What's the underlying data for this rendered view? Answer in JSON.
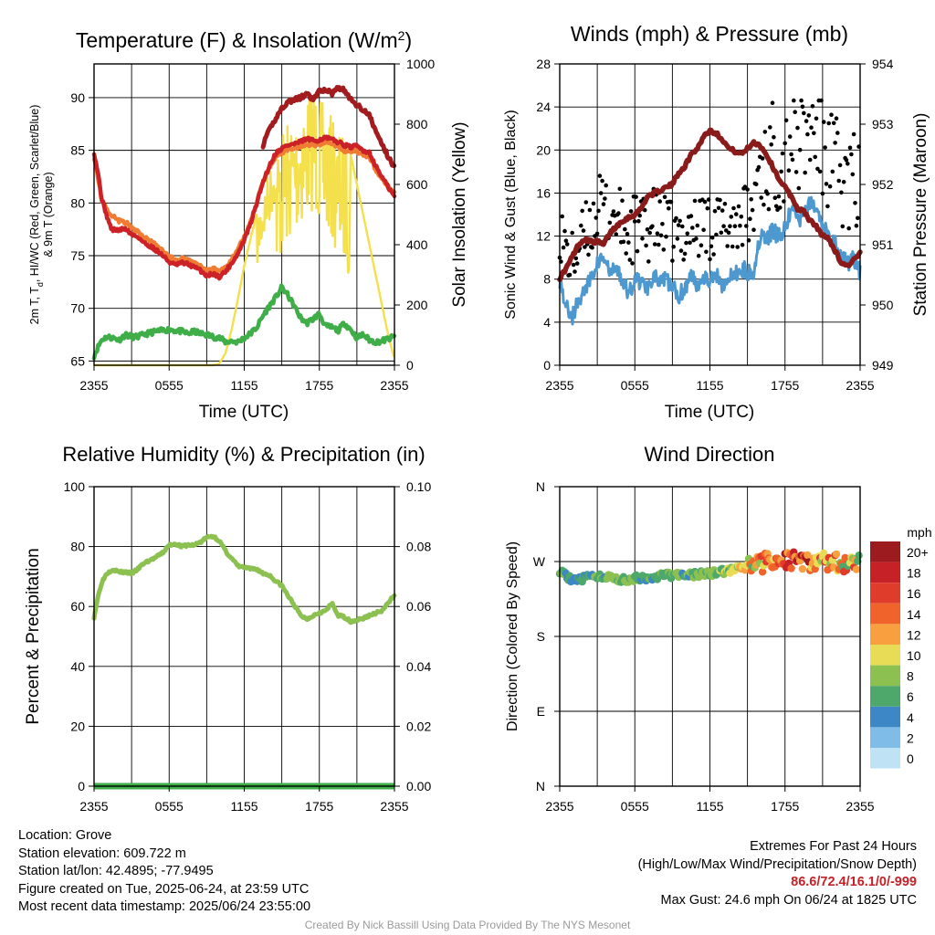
{
  "chart_data": [
    {
      "type": "line",
      "title_main": "Temperature (F) & Insolation (W/m",
      "title_sup": "2",
      "title_close": ")",
      "xlabel": "Time (UTC)",
      "ylabel_left_line1": "2m T, T",
      "ylabel_left_sub": "d",
      "ylabel_left_line1_tail": ", HI/WC (Red, Green, Scarlet/Blue)",
      "ylabel_left_line2": "& 9m T (Orange)",
      "ylabel_right": "Solar Insolation (Yellow)",
      "x_ticks": [
        "2355",
        "0555",
        "1155",
        "1755",
        "2355"
      ],
      "x_hours": [
        0,
        6,
        12,
        18,
        24
      ],
      "ylim": [
        64.6,
        93.2
      ],
      "y_ticks": [
        65,
        70,
        75,
        80,
        85,
        90
      ],
      "y2lim": [
        0,
        1000
      ],
      "y2_ticks": [
        0,
        200,
        400,
        600,
        800,
        1000
      ],
      "grid": true,
      "series": [
        {
          "color": "#cc2127",
          "axis": "left",
          "x": [
            0,
            0.3,
            0.6,
            1,
            1.4,
            2,
            2.5,
            3,
            3.5,
            4,
            4.5,
            5,
            5.5,
            6,
            6.5,
            7,
            7.5,
            8,
            8.5,
            9,
            9.5,
            10,
            10.5,
            11,
            11.5,
            12,
            12.5,
            13,
            13.5,
            14,
            14.5,
            15,
            15.5,
            16,
            16.5,
            17,
            17.5,
            18,
            18.5,
            19,
            19.5,
            20,
            20.5,
            21,
            21.5,
            22,
            22.5,
            23,
            23.5,
            24
          ],
          "y": [
            84.8,
            83,
            80.5,
            78.8,
            77.5,
            77.4,
            77.6,
            77,
            76.8,
            76.2,
            75.9,
            75.5,
            75,
            74.4,
            74.1,
            74.3,
            74.2,
            73.9,
            73.6,
            73.1,
            73.3,
            73,
            73.5,
            74.3,
            75.2,
            76.5,
            78,
            80,
            82,
            83.5,
            84.7,
            85.2,
            85.5,
            85.6,
            85.8,
            86.1,
            85.9,
            86,
            86.2,
            86,
            85.8,
            85.5,
            85.3,
            85.4,
            85,
            84.8,
            83.5,
            82.5,
            81.5,
            80.6
          ]
        },
        {
          "color": "#f07c33",
          "axis": "left",
          "x": [
            0,
            0.3,
            0.6,
            1,
            1.4,
            2,
            2.5,
            3,
            3.5,
            4,
            4.5,
            5,
            5.5,
            6,
            6.5,
            7,
            7.5,
            8,
            8.5,
            9,
            9.5,
            10,
            10.5,
            11,
            11.5,
            12,
            12.5,
            13,
            13.5,
            14,
            14.5,
            15,
            15.5,
            16,
            16.5,
            17,
            17.5,
            18,
            18.5,
            19,
            19.5,
            20,
            20.5,
            21,
            21.5,
            22,
            22.5,
            23,
            23.5,
            24
          ],
          "y": [
            84.3,
            82.5,
            80.3,
            79.4,
            78.9,
            78.3,
            78.2,
            77.6,
            77.3,
            76.7,
            76.4,
            75.9,
            75.4,
            74.9,
            74.6,
            74.7,
            74.6,
            74.3,
            74,
            73.6,
            73.8,
            73.5,
            73.9,
            74.7,
            75.6,
            76.8,
            78.2,
            80.1,
            81.9,
            83.3,
            84.3,
            84.8,
            85.1,
            85.2,
            85.4,
            85.6,
            85.5,
            85.6,
            85.8,
            85.6,
            85.3,
            85,
            84.9,
            84.9,
            84.6,
            84.3,
            83.2,
            82.3,
            81.5,
            81
          ]
        },
        {
          "color": "#a11b1f",
          "axis": "left",
          "x": [
            13.5,
            14,
            14.5,
            15,
            15.5,
            16,
            16.5,
            17,
            17.5,
            18,
            18.5,
            19,
            19.5,
            20,
            20.5,
            21,
            21.5,
            22,
            22.5,
            23,
            23.5,
            24
          ],
          "y": [
            85.5,
            86.9,
            88,
            89,
            89.6,
            89.8,
            90,
            90.3,
            89.8,
            90.6,
            90.8,
            90.4,
            91,
            90.7,
            89.8,
            89.3,
            88.9,
            88.3,
            86.8,
            85.6,
            84.4,
            83.4
          ]
        },
        {
          "color": "#3fae49",
          "axis": "left",
          "x": [
            0,
            0.3,
            0.6,
            1,
            1.5,
            2,
            2.5,
            3,
            3.5,
            4,
            4.5,
            5,
            5.5,
            6,
            6.5,
            7,
            7.5,
            8,
            8.5,
            9,
            9.5,
            10,
            10.5,
            11,
            11.5,
            12,
            12.5,
            13,
            13.5,
            14,
            14.5,
            15,
            15.5,
            16,
            16.5,
            17,
            17.5,
            18,
            18.5,
            19,
            19.5,
            20,
            20.5,
            21,
            21.5,
            22,
            22.5,
            23,
            23.5,
            24
          ],
          "y": [
            65.5,
            66.3,
            67,
            67.3,
            67.2,
            67,
            67.5,
            67.3,
            67.3,
            67.5,
            67.7,
            67.8,
            67.9,
            68,
            67.9,
            67.8,
            67.6,
            67.8,
            67.6,
            67.5,
            67.3,
            67.2,
            66.8,
            66.9,
            66.8,
            67.2,
            67.6,
            68.2,
            69.3,
            70.2,
            71,
            72,
            71.2,
            70.2,
            69.1,
            68.6,
            69,
            69.5,
            68.3,
            68.2,
            67.9,
            68.6,
            68,
            67.2,
            67.5,
            67,
            66.8,
            66.9,
            67.1,
            67.3
          ]
        },
        {
          "color": "#f4e04d",
          "axis": "right",
          "x": [
            0,
            2,
            4,
            6,
            8,
            9.5,
            10,
            10.5,
            11,
            11.5,
            12,
            12.5,
            13,
            13.5,
            14,
            14.5,
            15,
            15.5,
            16,
            16.5,
            17,
            17.5,
            18,
            18.5,
            19,
            19.5,
            20,
            20.5,
            21,
            21.5,
            22,
            22.5,
            23,
            23.5,
            24
          ],
          "y": [
            0,
            0,
            0,
            0,
            0,
            0,
            5,
            40,
            120,
            220,
            330,
            420,
            500,
            580,
            650,
            720,
            780,
            820,
            840,
            880,
            900,
            940,
            880,
            860,
            820,
            780,
            760,
            700,
            600,
            500,
            400,
            300,
            200,
            100,
            20
          ]
        }
      ]
    },
    {
      "type": "line",
      "title": "Winds (mph) & Pressure (mb)",
      "xlabel": "Time (UTC)",
      "ylabel_left": "Sonic Wind & Gust (Blue, Black)",
      "ylabel_right": "Station Pressure (Maroon)",
      "x_ticks": [
        "2355",
        "0555",
        "1155",
        "1755",
        "2355"
      ],
      "x_hours": [
        0,
        6,
        12,
        18,
        24
      ],
      "ylim": [
        0,
        28
      ],
      "y_ticks": [
        0,
        4,
        8,
        12,
        16,
        20,
        24,
        28
      ],
      "y2lim": [
        949,
        954
      ],
      "y2_ticks": [
        949,
        950,
        951,
        952,
        953,
        954
      ],
      "grid": true,
      "series": [
        {
          "color": "#4e98d0",
          "axis": "left",
          "x": [
            0,
            0.5,
            1,
            1.5,
            2,
            2.5,
            3,
            3.5,
            4,
            4.5,
            5,
            5.5,
            6,
            6.5,
            7,
            7.5,
            8,
            8.5,
            9,
            9.5,
            10,
            10.5,
            11,
            11.5,
            12,
            12.5,
            13,
            13.5,
            14,
            14.5,
            15,
            15.5,
            16,
            16.5,
            17,
            17.5,
            18,
            18.5,
            19,
            19.5,
            20,
            20.5,
            21,
            21.5,
            22,
            22.5,
            23,
            23.5,
            24
          ],
          "y": [
            8,
            5.5,
            4.5,
            6,
            7,
            8,
            9.5,
            10,
            8.5,
            9,
            8,
            6.5,
            8,
            7.8,
            7.2,
            8.5,
            7.5,
            8,
            7.2,
            6.5,
            7.2,
            8.3,
            7.5,
            8.4,
            7.8,
            8.5,
            7.5,
            8,
            8.4,
            9,
            8.7,
            8.8,
            12,
            11.5,
            12.5,
            12,
            12.6,
            14.5,
            13.5,
            13.8,
            15,
            14.5,
            13,
            12,
            11.5,
            10,
            9.5,
            10,
            8.5
          ]
        },
        {
          "color": "#8a1b1b",
          "axis": "right",
          "x": [
            0,
            0.5,
            1,
            1.5,
            2,
            2.5,
            3,
            3.5,
            4,
            4.5,
            5,
            5.5,
            6,
            6.5,
            7,
            7.5,
            8,
            8.5,
            9,
            9.5,
            10,
            10.5,
            11,
            11.5,
            12,
            12.5,
            13,
            13.5,
            14,
            14.5,
            15,
            15.5,
            16,
            16.5,
            17,
            17.5,
            18,
            18.5,
            19,
            19.5,
            20,
            20.5,
            21,
            21.5,
            22,
            22.5,
            23,
            23.5,
            24
          ],
          "y": [
            950.45,
            950.6,
            950.8,
            951,
            951.1,
            951.05,
            951.05,
            951,
            951.2,
            951.3,
            951.4,
            951.45,
            951.5,
            951.6,
            951.8,
            951.85,
            951.9,
            951.95,
            952,
            952.2,
            952.3,
            952.5,
            952.6,
            952.8,
            952.9,
            952.85,
            952.75,
            952.6,
            952.55,
            952.5,
            952.6,
            952.7,
            952.65,
            952.5,
            952.3,
            952.1,
            951.95,
            951.8,
            951.6,
            951.55,
            951.4,
            951.3,
            951.15,
            951.1,
            950.9,
            950.7,
            950.65,
            950.75,
            950.85
          ]
        }
      ]
    },
    {
      "type": "line",
      "title": "Relative Humidity (%) & Precipitation (in)",
      "ylabel_left": "Percent & Precipitation",
      "x_ticks": [
        "2355",
        "0555",
        "1155",
        "1755",
        "2355"
      ],
      "x_hours": [
        0,
        6,
        12,
        18,
        24
      ],
      "ylim": [
        0,
        100
      ],
      "y_ticks": [
        0,
        20,
        40,
        60,
        80,
        100
      ],
      "y2lim": [
        0,
        0.1
      ],
      "y2_ticks": [
        "0.00",
        "0.02",
        "0.04",
        "0.06",
        "0.08",
        "0.10"
      ],
      "grid": true,
      "series": [
        {
          "color": "#8cc152",
          "axis": "left",
          "x": [
            0,
            0.3,
            0.6,
            1,
            1.5,
            2,
            2.5,
            3,
            3.5,
            4,
            4.5,
            5,
            5.5,
            6,
            6.5,
            7,
            7.5,
            8,
            8.5,
            9,
            9.5,
            10,
            10.5,
            11,
            11.5,
            12,
            12.5,
            13,
            13.5,
            14,
            14.5,
            15,
            15.5,
            16,
            16.5,
            17,
            17.5,
            18,
            18.5,
            19,
            19.5,
            20,
            20.5,
            21,
            21.5,
            22,
            22.5,
            23,
            23.5,
            24
          ],
          "y": [
            56.5,
            63,
            68,
            71,
            72.5,
            71.5,
            71.5,
            71,
            72.5,
            74.5,
            75.5,
            76.5,
            78,
            80.5,
            81,
            80,
            80.5,
            80.5,
            81.5,
            83,
            83.5,
            82,
            78.5,
            76,
            73.5,
            73,
            72.5,
            72.5,
            71,
            70.5,
            68.5,
            67,
            63.5,
            60.5,
            57,
            55.8,
            57,
            58,
            58.5,
            61,
            57,
            56.5,
            55,
            55.5,
            56,
            57,
            57.8,
            58.5,
            61,
            64
          ]
        },
        {
          "color": "#3fae49",
          "axis": "left",
          "x": [
            0,
            24
          ],
          "y": [
            0,
            0
          ]
        }
      ]
    },
    {
      "type": "scatter",
      "title": "Wind Direction",
      "ylabel_left": "Direction (Colored By Speed)",
      "x_ticks": [
        "2355",
        "0555",
        "1155",
        "1755",
        "2355"
      ],
      "x_hours": [
        0,
        6,
        12,
        18,
        24
      ],
      "y_ticks": [
        "N",
        "E",
        "S",
        "W",
        "N"
      ],
      "ylim": [
        0,
        360
      ],
      "grid": true,
      "colorbar_unit": "mph",
      "colorbar_labels": [
        "20+",
        "18",
        "16",
        "14",
        "12",
        "10",
        "8",
        "6",
        "4",
        "2",
        "0"
      ],
      "colorbar_colors": [
        "#9c1b1e",
        "#c62127",
        "#e03c2c",
        "#f0642b",
        "#f8a03f",
        "#e8dc56",
        "#8cc152",
        "#4ea86b",
        "#3d87c5",
        "#80bde6",
        "#bfe3f5"
      ],
      "speed_x": [
        0,
        1,
        2,
        3,
        4,
        5,
        6,
        7,
        8,
        9,
        10,
        11,
        12,
        13,
        14,
        15,
        16,
        17,
        18,
        19,
        20,
        21,
        22,
        23,
        24
      ],
      "speed_y": [
        7,
        5,
        5,
        6,
        7,
        7,
        7,
        6,
        6,
        7,
        6,
        7,
        7,
        8,
        9,
        10,
        12,
        13,
        15,
        16,
        15,
        13,
        12,
        11,
        10
      ],
      "dir_x": [
        0,
        1,
        2,
        3,
        4,
        5,
        6,
        7,
        8,
        9,
        10,
        11,
        12,
        13,
        14,
        15,
        16,
        17,
        18,
        19,
        20,
        21,
        22,
        23,
        24
      ],
      "dir_y": [
        258,
        247,
        250,
        253,
        252,
        248,
        250,
        251,
        252,
        254,
        253,
        255,
        256,
        258,
        260,
        264,
        268,
        270,
        272,
        271,
        268,
        270,
        269,
        266,
        270
      ]
    }
  ],
  "info_left": [
    "Location: Grove",
    "Station elevation: 609.722 m",
    "Station lat/lon: 42.4895; -77.9495",
    "Figure created on Tue, 2025-06-24, at 23:59 UTC",
    "Most recent data timestamp: 2025/06/24 23:55:00"
  ],
  "info_right": {
    "title": "Extremes For Past 24 Hours",
    "subtitle": "(High/Low/Max Wind/Precipitation/Snow Depth)",
    "values": "86.6/72.4/16.1/0/-999",
    "values_color": "#c62127",
    "gust": "Max Gust: 24.6 mph On 06/24 at 1825 UTC"
  },
  "credit": "Created By Nick Bassill Using Data Provided By The NYS Mesonet"
}
